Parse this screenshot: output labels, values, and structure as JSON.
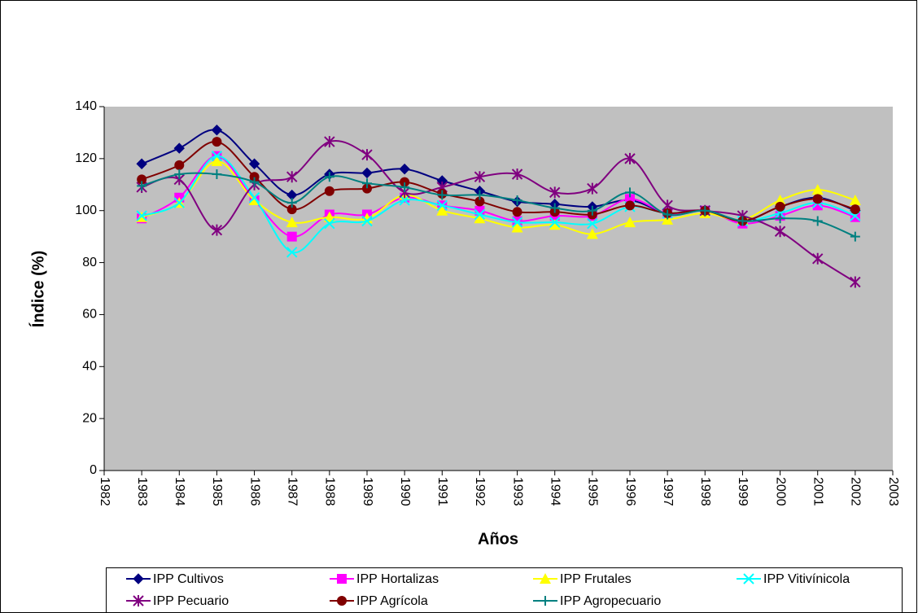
{
  "chart_data": {
    "type": "line",
    "x_label": "Años",
    "y_label": "Índice (%)",
    "x": [
      1983,
      1984,
      1985,
      1986,
      1987,
      1988,
      1989,
      1990,
      1991,
      1992,
      1993,
      1994,
      1995,
      1996,
      1997,
      1998,
      1999,
      2000,
      2001,
      2002
    ],
    "xlim": [
      1982,
      2003
    ],
    "xticks": [
      1982,
      1983,
      1984,
      1985,
      1986,
      1987,
      1988,
      1989,
      1990,
      1991,
      1992,
      1993,
      1994,
      1995,
      1996,
      1997,
      1998,
      1999,
      2000,
      2001,
      2002,
      2003
    ],
    "ylim": [
      0,
      140
    ],
    "yticks": [
      0,
      20,
      40,
      60,
      80,
      100,
      120,
      140
    ],
    "smooth": true,
    "plot_background": "#c0c0c0",
    "series": [
      {
        "name": "IPP Cultivos",
        "color": "#000080",
        "marker": "diamond",
        "values": [
          118,
          124,
          131,
          118,
          106,
          114,
          114.5,
          116,
          111.5,
          107.5,
          103.5,
          102.5,
          101.5,
          104,
          99,
          100,
          96,
          101.5,
          105,
          100
        ]
      },
      {
        "name": "IPP Hortalizas",
        "color": "#ff00ff",
        "marker": "square",
        "values": [
          97,
          105,
          121,
          104,
          90,
          98.5,
          98.5,
          105,
          102,
          100,
          96,
          98,
          98,
          104.5,
          99,
          100,
          95,
          98,
          102,
          97.5
        ]
      },
      {
        "name": "IPP Frutales",
        "color": "#ffff00",
        "marker": "triangle",
        "values": [
          97.5,
          103,
          119,
          104,
          95.5,
          97.5,
          97,
          106,
          100,
          97,
          93.5,
          94.5,
          91,
          95.5,
          96.5,
          99,
          96.5,
          104,
          108,
          104
        ]
      },
      {
        "name": "IPP Vitivínicola",
        "color": "#00ffff",
        "marker": "x",
        "values": [
          98,
          103,
          121,
          105,
          84,
          95,
          96,
          104,
          102,
          98.5,
          95.5,
          95.5,
          95,
          101.5,
          99,
          100,
          96,
          99,
          103,
          98
        ]
      },
      {
        "name": "IPP Pecuario",
        "color": "#800080",
        "marker": "star",
        "values": [
          109,
          112,
          92.5,
          110,
          113,
          126.5,
          121.5,
          107,
          109,
          113,
          114,
          107,
          108.5,
          120,
          102,
          100,
          98,
          92,
          81.5,
          72.5
        ]
      },
      {
        "name": "IPP Agrícola",
        "color": "#800000",
        "marker": "circle",
        "values": [
          112,
          117.5,
          126.5,
          113,
          100.5,
          107.5,
          108.5,
          111,
          106.5,
          103.5,
          99.5,
          99.5,
          98.5,
          102,
          99,
          100,
          96,
          101.5,
          104.5,
          100.5
        ]
      },
      {
        "name": "IPP Agropecuario",
        "color": "#008080",
        "marker": "plus",
        "values": [
          109.5,
          114,
          114,
          111,
          103,
          113,
          110.5,
          109,
          106,
          106,
          104,
          101,
          100,
          107,
          98.5,
          100,
          96,
          97,
          96,
          90
        ]
      }
    ]
  }
}
